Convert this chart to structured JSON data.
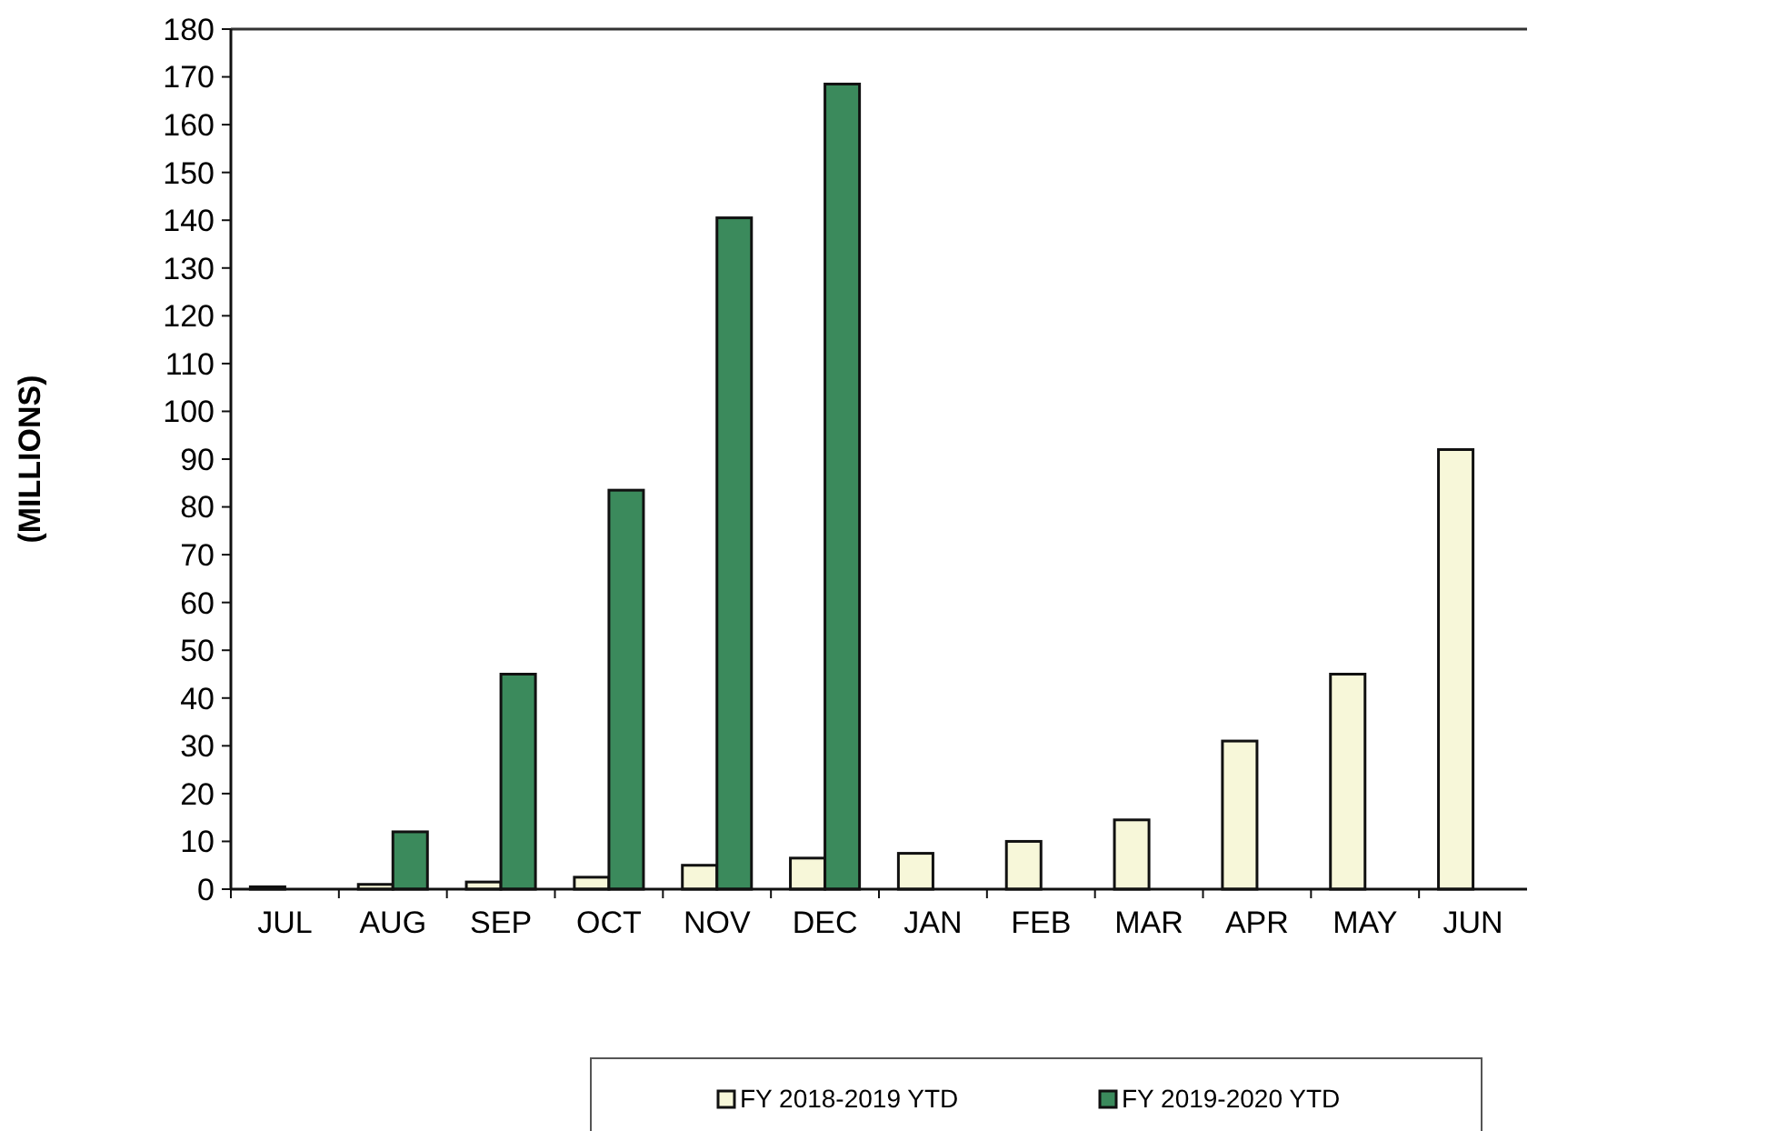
{
  "chart_data": {
    "type": "bar",
    "ylabel": "(MILLIONS)",
    "categories": [
      "JUL",
      "AUG",
      "SEP",
      "OCT",
      "NOV",
      "DEC",
      "JAN",
      "FEB",
      "MAR",
      "APR",
      "MAY",
      "JUN"
    ],
    "series": [
      {
        "name": "FY 2018-2019 YTD",
        "color": "#f7f7d9",
        "values": [
          0.5,
          1,
          1.5,
          2.5,
          5,
          6.5,
          7.5,
          10,
          14.5,
          31,
          45,
          92
        ]
      },
      {
        "name": "FY 2019-2020 YTD",
        "color": "#3b8a5c",
        "values": [
          0,
          12,
          45,
          83.5,
          140.5,
          168.5,
          null,
          null,
          null,
          null,
          null,
          null
        ]
      }
    ],
    "ylim": [
      0,
      180
    ],
    "yticks": [
      0,
      10,
      20,
      30,
      40,
      50,
      60,
      70,
      80,
      90,
      100,
      110,
      120,
      130,
      140,
      150,
      160,
      170,
      180
    ],
    "grid": false,
    "legend": "bottom"
  }
}
